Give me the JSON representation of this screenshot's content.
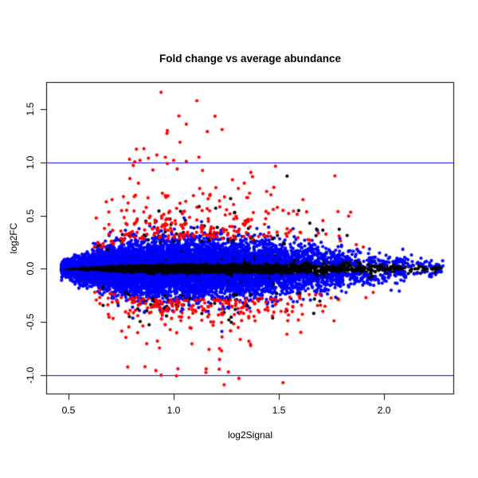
{
  "chart_data": {
    "type": "scatter",
    "title": "Fold change vs average abundance",
    "xlabel": "log2Signal",
    "ylabel": "log2FC",
    "xlim": [
      0.394,
      2.333
    ],
    "ylim": [
      -1.18,
      1.756
    ],
    "xticks": [
      0.5,
      1.0,
      1.5,
      2.0
    ],
    "yticks": [
      -1.0,
      -0.5,
      0.0,
      0.5,
      1.0,
      1.5
    ],
    "grid": false,
    "legend": false,
    "hlines": [
      {
        "y": 1.0,
        "color": "#0000FF"
      },
      {
        "y": -1.0,
        "color": "#0000FF"
      }
    ],
    "colors": {
      "black": "#000000",
      "blue": "#0000FF",
      "red": "#FF0000",
      "axis": "#000000",
      "background": "#FFFFFF"
    },
    "point_radius": 2.1,
    "data_x_range": [
      0.466,
      2.28
    ],
    "data_y_range": [
      -1.09,
      1.66
    ],
    "generator": {
      "seed": 7,
      "x_bins_main": [
        [
          0.466,
          0.55,
          5
        ],
        [
          0.55,
          0.65,
          8
        ],
        [
          0.65,
          0.75,
          10
        ],
        [
          0.75,
          0.9,
          15
        ],
        [
          0.9,
          1.05,
          15
        ],
        [
          1.05,
          1.2,
          13
        ],
        [
          1.2,
          1.35,
          11
        ],
        [
          1.35,
          1.5,
          9
        ],
        [
          1.5,
          1.65,
          6
        ],
        [
          1.65,
          1.8,
          4
        ],
        [
          1.8,
          1.95,
          2.5
        ],
        [
          1.95,
          2.1,
          1.5
        ],
        [
          2.1,
          2.28,
          1
        ]
      ],
      "x_bins_outlier": [
        [
          0.62,
          0.75,
          5
        ],
        [
          0.75,
          0.9,
          13
        ],
        [
          0.9,
          1.05,
          15
        ],
        [
          1.05,
          1.2,
          14
        ],
        [
          1.2,
          1.35,
          12
        ],
        [
          1.35,
          1.5,
          9
        ],
        [
          1.5,
          1.65,
          6
        ],
        [
          1.65,
          1.8,
          3
        ],
        [
          1.8,
          1.95,
          1
        ]
      ],
      "spread_knots": {
        "x": [
          0.466,
          0.6,
          0.75,
          0.9,
          1.1,
          1.3,
          1.5,
          1.7,
          1.9,
          2.1,
          2.28
        ],
        "s": [
          0.03,
          0.07,
          0.105,
          0.12,
          0.125,
          0.12,
          0.115,
          0.1,
          0.075,
          0.05,
          0.035
        ]
      },
      "groups": {
        "black_core": {
          "n": 4500,
          "sigma_scale": 0.45
        },
        "blue_band": {
          "n": 6000,
          "offset_scale": 0.45,
          "sigma_scale": 0.95
        },
        "black_outliers": {
          "n": 110,
          "base_scale": 2.0,
          "exp_scale": 0.13
        },
        "red_upper": {
          "n": 260,
          "base_scale": 2.3,
          "exp_scale": 0.19,
          "ymax": 1.66
        },
        "red_lower": {
          "n": 240,
          "base_scale": 2.3,
          "exp_scale": 0.15,
          "ymin": -1.09
        }
      }
    },
    "notable_points": [
      {
        "x": 0.94,
        "y": 1.66,
        "color": "red"
      },
      {
        "x": 1.11,
        "y": 1.58,
        "color": "red"
      },
      {
        "x": 1.06,
        "y": 1.36,
        "color": "red"
      },
      {
        "x": 0.97,
        "y": 1.3,
        "color": "red"
      },
      {
        "x": 1.16,
        "y": 1.29,
        "color": "red"
      },
      {
        "x": 1.23,
        "y": 1.31,
        "color": "red"
      },
      {
        "x": 1.03,
        "y": 1.19,
        "color": "red"
      },
      {
        "x": 0.96,
        "y": 1.05,
        "color": "red"
      },
      {
        "x": 0.79,
        "y": 1.03,
        "color": "red"
      },
      {
        "x": 0.84,
        "y": 1.02,
        "color": "red"
      },
      {
        "x": 0.88,
        "y": 1.04,
        "color": "red"
      },
      {
        "x": 0.92,
        "y": 1.07,
        "color": "red"
      },
      {
        "x": 1.0,
        "y": 1.02,
        "color": "red"
      },
      {
        "x": 1.06,
        "y": 1.01,
        "color": "red"
      },
      {
        "x": 1.12,
        "y": 1.05,
        "color": "red"
      },
      {
        "x": 0.97,
        "y": 0.99,
        "color": "red"
      },
      {
        "x": 1.24,
        "y": -1.09,
        "color": "red"
      },
      {
        "x": 1.52,
        "y": -1.07,
        "color": "red"
      },
      {
        "x": 1.31,
        "y": -1.03,
        "color": "red"
      },
      {
        "x": 0.94,
        "y": -1.0,
        "color": "red"
      },
      {
        "x": 1.02,
        "y": -0.94,
        "color": "red"
      },
      {
        "x": 1.26,
        "y": -0.97,
        "color": "red"
      },
      {
        "x": 1.29,
        "y": 0.53,
        "color": "black"
      },
      {
        "x": 1.2,
        "y": 0.57,
        "color": "black"
      }
    ]
  }
}
